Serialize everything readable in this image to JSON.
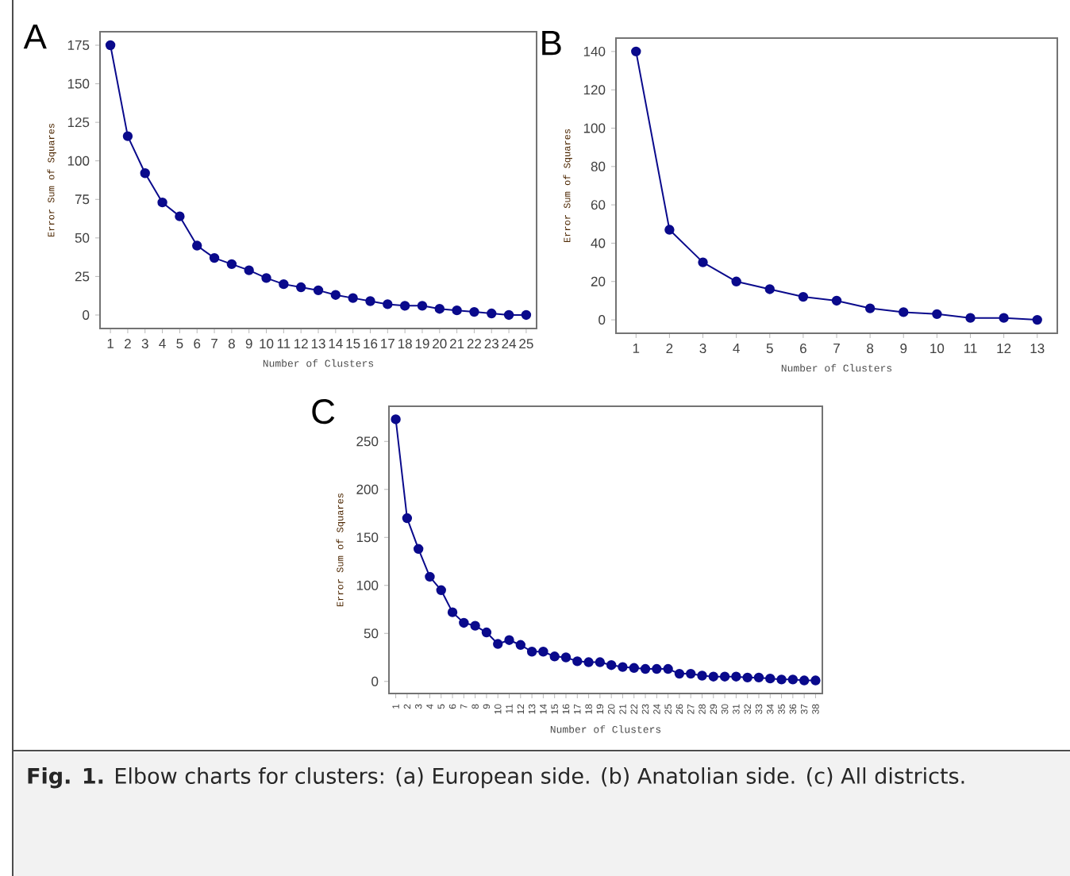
{
  "chart_data": [
    {
      "type": "line",
      "title": "A",
      "xlabel": "Number of  Clusters",
      "ylabel": "Error Sum of Squares",
      "marker": "circle",
      "categories": [
        "1",
        "2",
        "3",
        "4",
        "5",
        "6",
        "7",
        "8",
        "9",
        "10",
        "11",
        "12",
        "13",
        "14",
        "15",
        "16",
        "17",
        "18",
        "19",
        "20",
        "21",
        "22",
        "23",
        "24",
        "25"
      ],
      "series": [
        {
          "color": "#0a0a8c",
          "values": [
            175,
            116,
            92,
            73,
            64,
            45,
            37,
            33,
            29,
            24,
            20,
            18,
            16,
            13,
            11,
            9,
            7,
            6,
            6,
            4,
            3,
            2,
            1,
            0,
            0
          ]
        }
      ],
      "ylim": [
        -8.75,
        183.75
      ],
      "yticks": [
        0,
        25,
        50,
        75,
        100,
        125,
        150,
        175
      ]
    },
    {
      "type": "line",
      "title": "B",
      "xlabel": "Number of  Clusters",
      "ylabel": "Error Sum of Squares",
      "marker": "circle",
      "categories": [
        "1",
        "2",
        "3",
        "4",
        "5",
        "6",
        "7",
        "8",
        "9",
        "10",
        "11",
        "12",
        "13"
      ],
      "series": [
        {
          "color": "#0a0a8c",
          "values": [
            140,
            47,
            30,
            20,
            16,
            12,
            10,
            6,
            4,
            3,
            1,
            1,
            0
          ]
        }
      ],
      "ylim": [
        -7,
        147
      ],
      "yticks": [
        0,
        20,
        40,
        60,
        80,
        100,
        120,
        140
      ]
    },
    {
      "type": "line",
      "title": "C",
      "xlabel": "Number of  Clusters",
      "ylabel": "Error Sum of Squares",
      "marker": "circle",
      "categories": [
        "1",
        "2",
        "3",
        "4",
        "5",
        "6",
        "7",
        "8",
        "9",
        "10",
        "11",
        "12",
        "13",
        "14",
        "15",
        "16",
        "17",
        "18",
        "19",
        "20",
        "21",
        "22",
        "23",
        "24",
        "25",
        "26",
        "27",
        "28",
        "29",
        "30",
        "31",
        "32",
        "33",
        "34",
        "35",
        "36",
        "37",
        "38"
      ],
      "series": [
        {
          "color": "#0a0a8c",
          "values": [
            273,
            170,
            138,
            109,
            95,
            72,
            61,
            58,
            51,
            39,
            43,
            38,
            31,
            31,
            26,
            25,
            21,
            20,
            20,
            17,
            15,
            14,
            13,
            13,
            13,
            8,
            8,
            6,
            5,
            5,
            5,
            4,
            4,
            3,
            2,
            2,
            1,
            1
          ]
        }
      ],
      "ylim": [
        -12.6,
        286.6
      ],
      "yticks": [
        0,
        50,
        100,
        150,
        200,
        250
      ],
      "annotations": [
        "**Fig. 1.** Elbow charts for clusters: (a) European side. (b) Anatolian side. (c) All districts."
      ]
    }
  ]
}
